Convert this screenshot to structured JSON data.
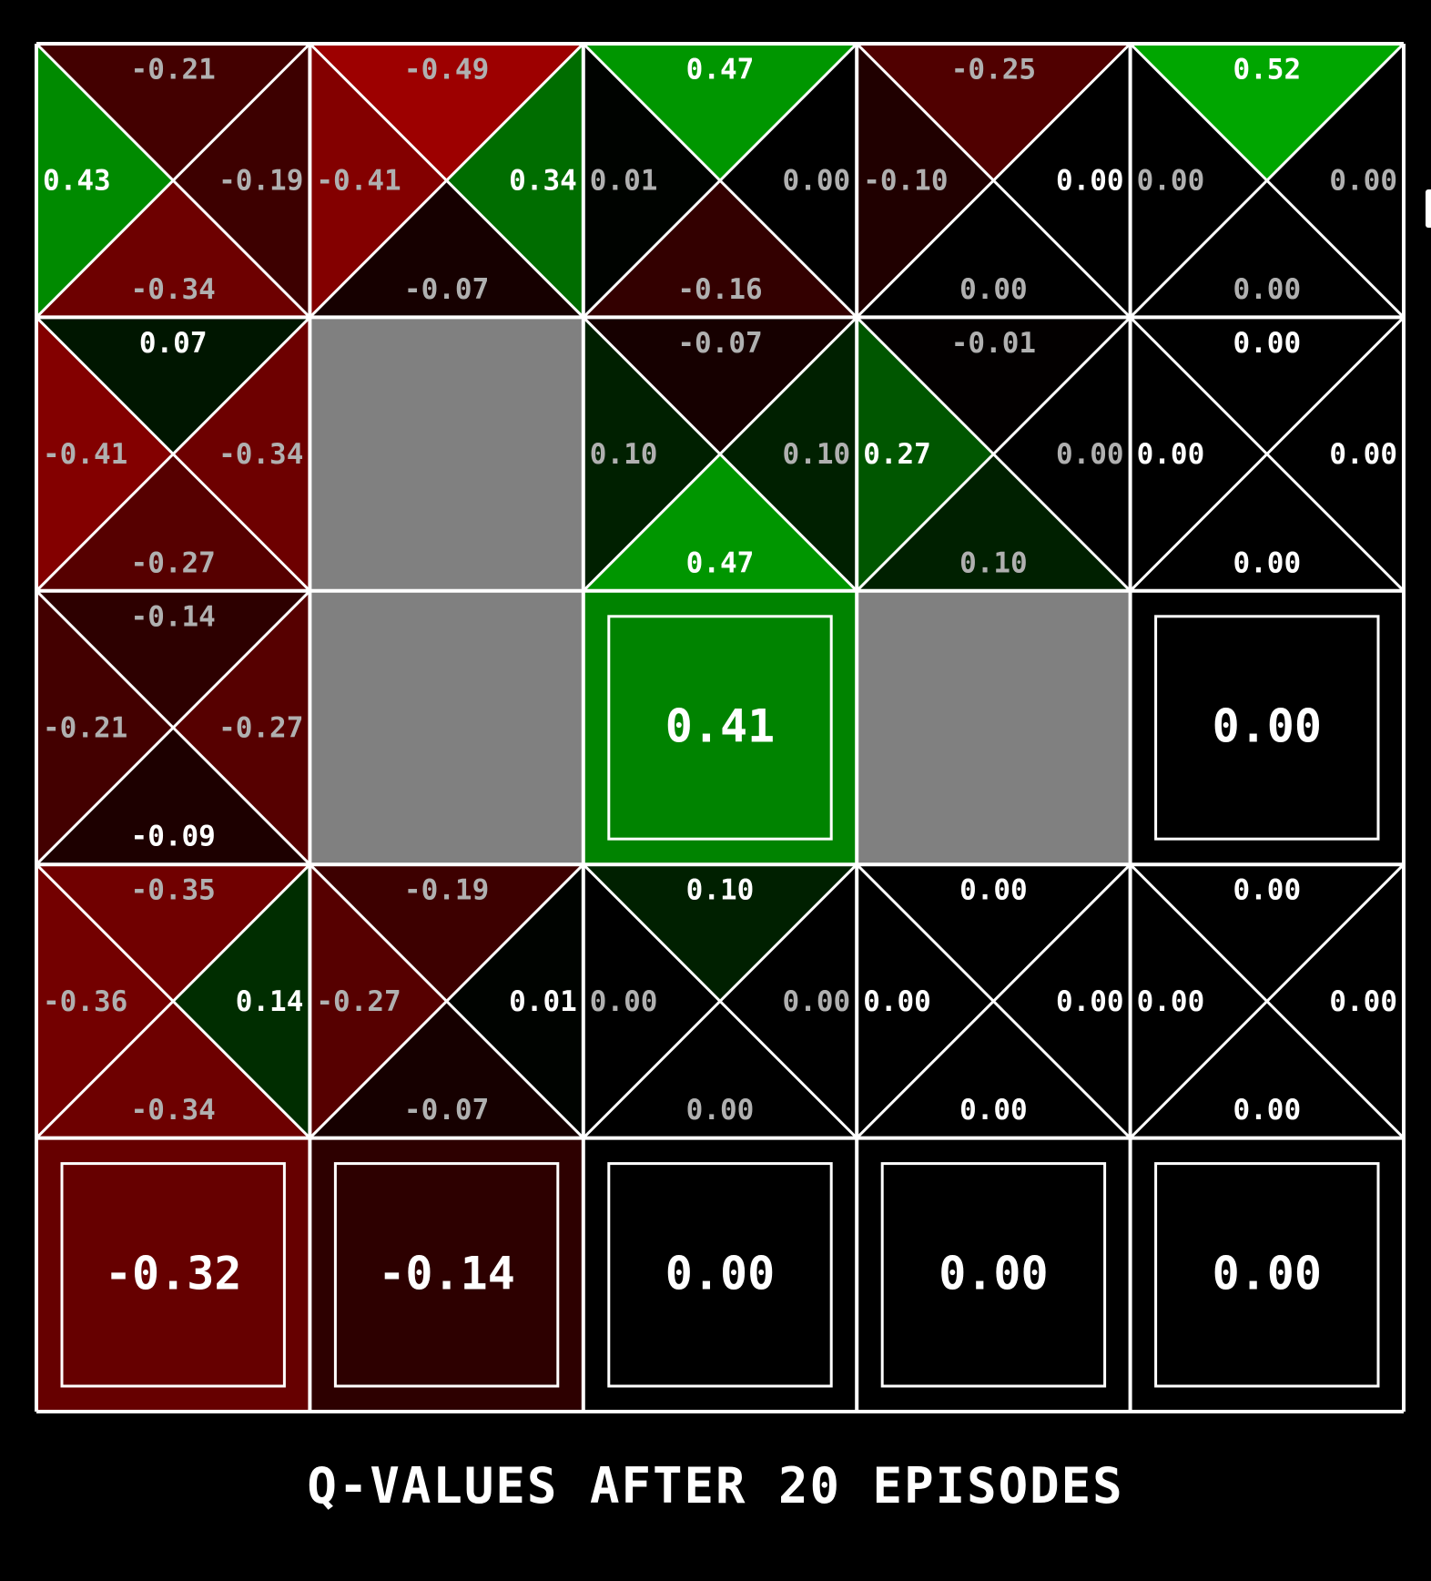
{
  "title": "Q-VALUES AFTER 20 EPISODES",
  "colors": {
    "background": "#000000",
    "wall": "#808080",
    "grid_lines": "#ffffff",
    "positive": "#00a000",
    "negative": "#a00000"
  },
  "grid": {
    "rows": 5,
    "cols": 5,
    "cells": [
      [
        {
          "type": "q",
          "north": "-0.21",
          "east": "-0.19",
          "south": "-0.34",
          "west": "0.43",
          "best": "west"
        },
        {
          "type": "q",
          "north": "-0.49",
          "east": "0.34",
          "south": "-0.07",
          "west": "-0.41",
          "best": "east"
        },
        {
          "type": "q",
          "north": "0.47",
          "east": "0.00",
          "south": "-0.16",
          "west": "0.01",
          "best": "north"
        },
        {
          "type": "q",
          "north": "-0.25",
          "east": "0.00",
          "south": "0.00",
          "west": "-0.10",
          "best": "east"
        },
        {
          "type": "q",
          "north": "0.52",
          "east": "0.00",
          "south": "0.00",
          "west": "0.00",
          "best": "north"
        }
      ],
      [
        {
          "type": "q",
          "north": "0.07",
          "east": "-0.34",
          "south": "-0.27",
          "west": "-0.41",
          "best": "north"
        },
        {
          "type": "wall"
        },
        {
          "type": "q",
          "north": "-0.07",
          "east": "0.10",
          "south": "0.47",
          "west": "0.10",
          "best": "south"
        },
        {
          "type": "q",
          "north": "-0.01",
          "east": "0.00",
          "south": "0.10",
          "west": "0.27",
          "best": "west"
        },
        {
          "type": "q",
          "north": "0.00",
          "east": "0.00",
          "south": "0.00",
          "west": "0.00",
          "best": "all"
        }
      ],
      [
        {
          "type": "q",
          "north": "-0.14",
          "east": "-0.27",
          "south": "-0.09",
          "west": "-0.21",
          "best": "south"
        },
        {
          "type": "wall"
        },
        {
          "type": "exit",
          "value": "0.41"
        },
        {
          "type": "wall"
        },
        {
          "type": "exit",
          "value": "0.00"
        }
      ],
      [
        {
          "type": "q",
          "north": "-0.35",
          "east": "0.14",
          "south": "-0.34",
          "west": "-0.36",
          "best": "east"
        },
        {
          "type": "q",
          "north": "-0.19",
          "east": "0.01",
          "south": "-0.07",
          "west": "-0.27",
          "best": "east"
        },
        {
          "type": "q",
          "north": "0.10",
          "east": "0.00",
          "south": "0.00",
          "west": "0.00",
          "best": "north"
        },
        {
          "type": "q",
          "north": "0.00",
          "east": "0.00",
          "south": "0.00",
          "west": "0.00",
          "best": "all"
        },
        {
          "type": "q",
          "north": "0.00",
          "east": "0.00",
          "south": "0.00",
          "west": "0.00",
          "best": "all"
        }
      ],
      [
        {
          "type": "exit",
          "value": "-0.32"
        },
        {
          "type": "exit",
          "value": "-0.14"
        },
        {
          "type": "exit",
          "value": "0.00"
        },
        {
          "type": "exit",
          "value": "0.00"
        },
        {
          "type": "exit",
          "value": "0.00"
        }
      ]
    ]
  }
}
